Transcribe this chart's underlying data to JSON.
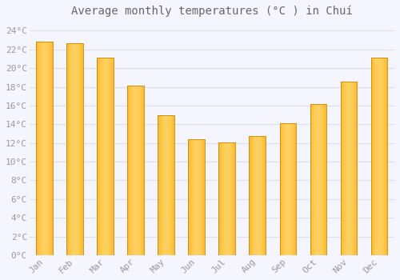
{
  "title": "Average monthly temperatures (°C ) in Chuí",
  "months": [
    "Jan",
    "Feb",
    "Mar",
    "Apr",
    "May",
    "Jun",
    "Jul",
    "Aug",
    "Sep",
    "Oct",
    "Nov",
    "Dec"
  ],
  "values": [
    22.8,
    22.7,
    21.1,
    18.1,
    15.0,
    12.4,
    12.1,
    12.7,
    14.1,
    16.2,
    18.6,
    21.1
  ],
  "bar_color_center": "#FFD060",
  "bar_color_edge": "#F5A800",
  "bar_outline_color": "#CC8800",
  "background_color": "#F5F5FF",
  "plot_bg_color": "#F5F5FF",
  "grid_color": "#DDDDEE",
  "text_color": "#999999",
  "title_color": "#666666",
  "ylim": [
    0,
    25
  ],
  "ytick_values": [
    0,
    2,
    4,
    6,
    8,
    10,
    12,
    14,
    16,
    18,
    20,
    22,
    24
  ],
  "title_fontsize": 10,
  "tick_fontsize": 8,
  "bar_width": 0.55
}
